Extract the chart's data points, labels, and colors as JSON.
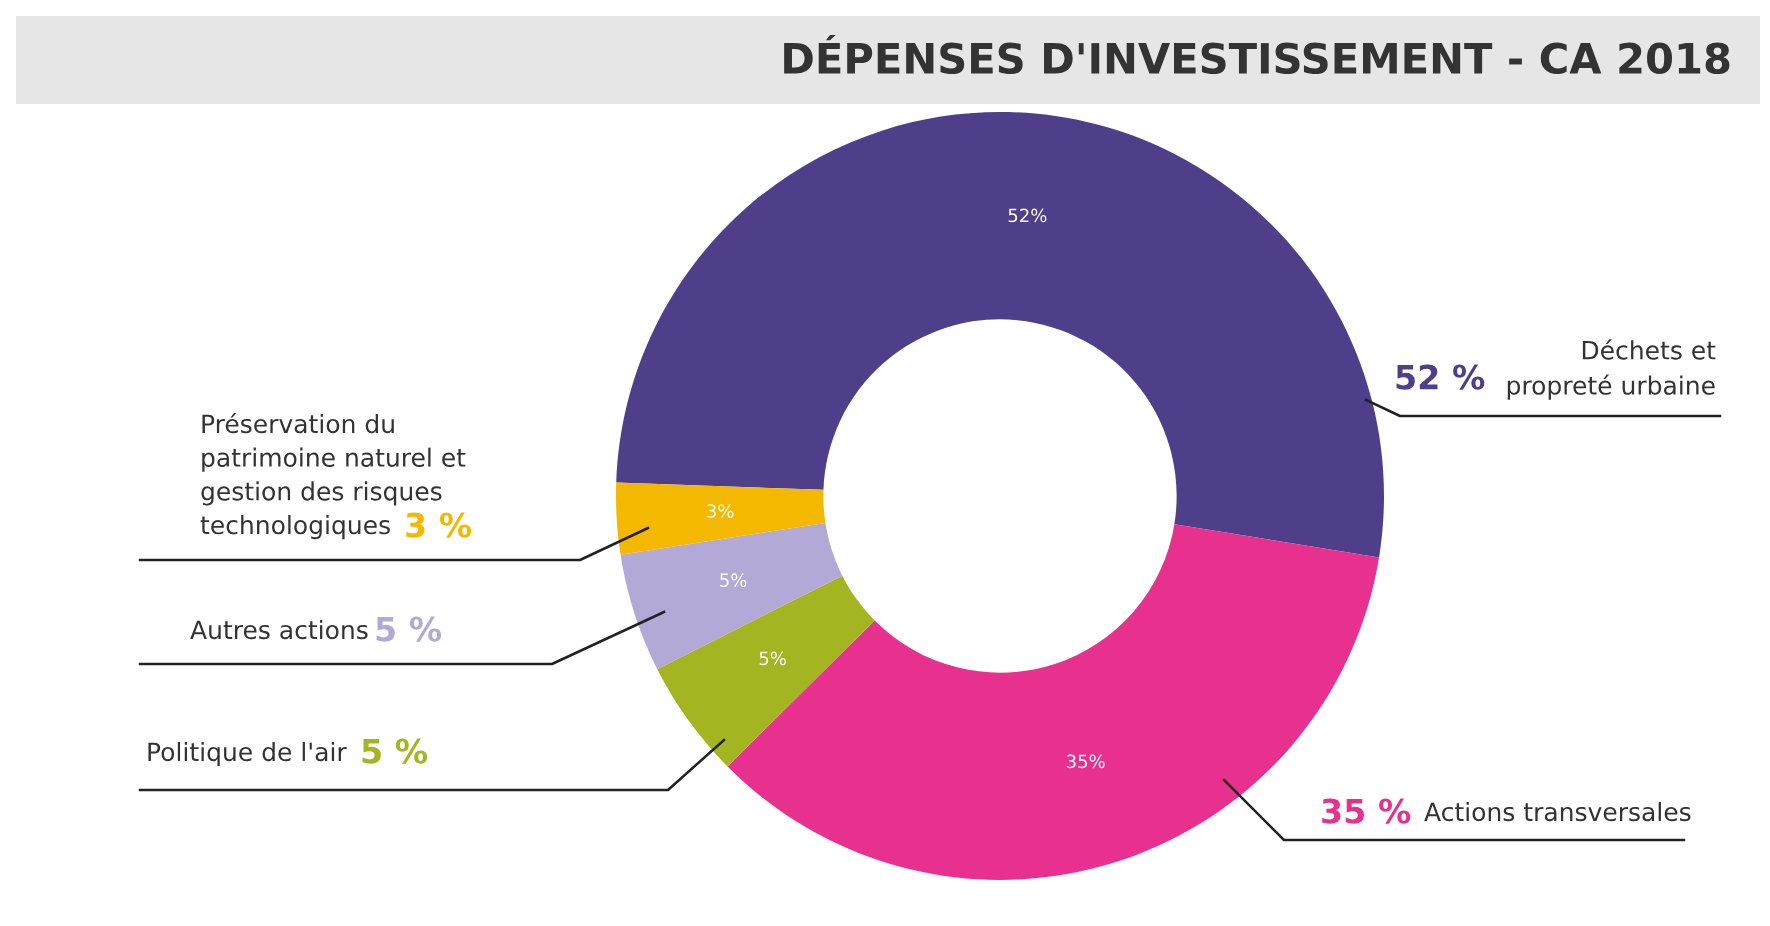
{
  "chart_data": {
    "type": "donut",
    "title": "DÉPENSES D'INVESTISSEMENT - CA 2018",
    "categories": [
      "Déchets et\npropreté urbaine",
      "Actions transversales",
      "Politique de l'air",
      "Autres actions",
      "Préservation du\npatrimoine naturel et\ngestion des risques\ntechnologiques"
    ],
    "values": [
      52,
      35,
      5,
      5,
      3
    ],
    "colors": [
      "#4f3f8a",
      "#e8308f",
      "#a3b520",
      "#b3a9d6",
      "#f5b800"
    ],
    "value_labels": [
      "52%",
      "35%",
      "5%",
      "5%",
      "3%"
    ],
    "annotations": [
      "52 %",
      "35 %",
      "5 %",
      "5 %",
      "3 %"
    ],
    "legend": false
  }
}
